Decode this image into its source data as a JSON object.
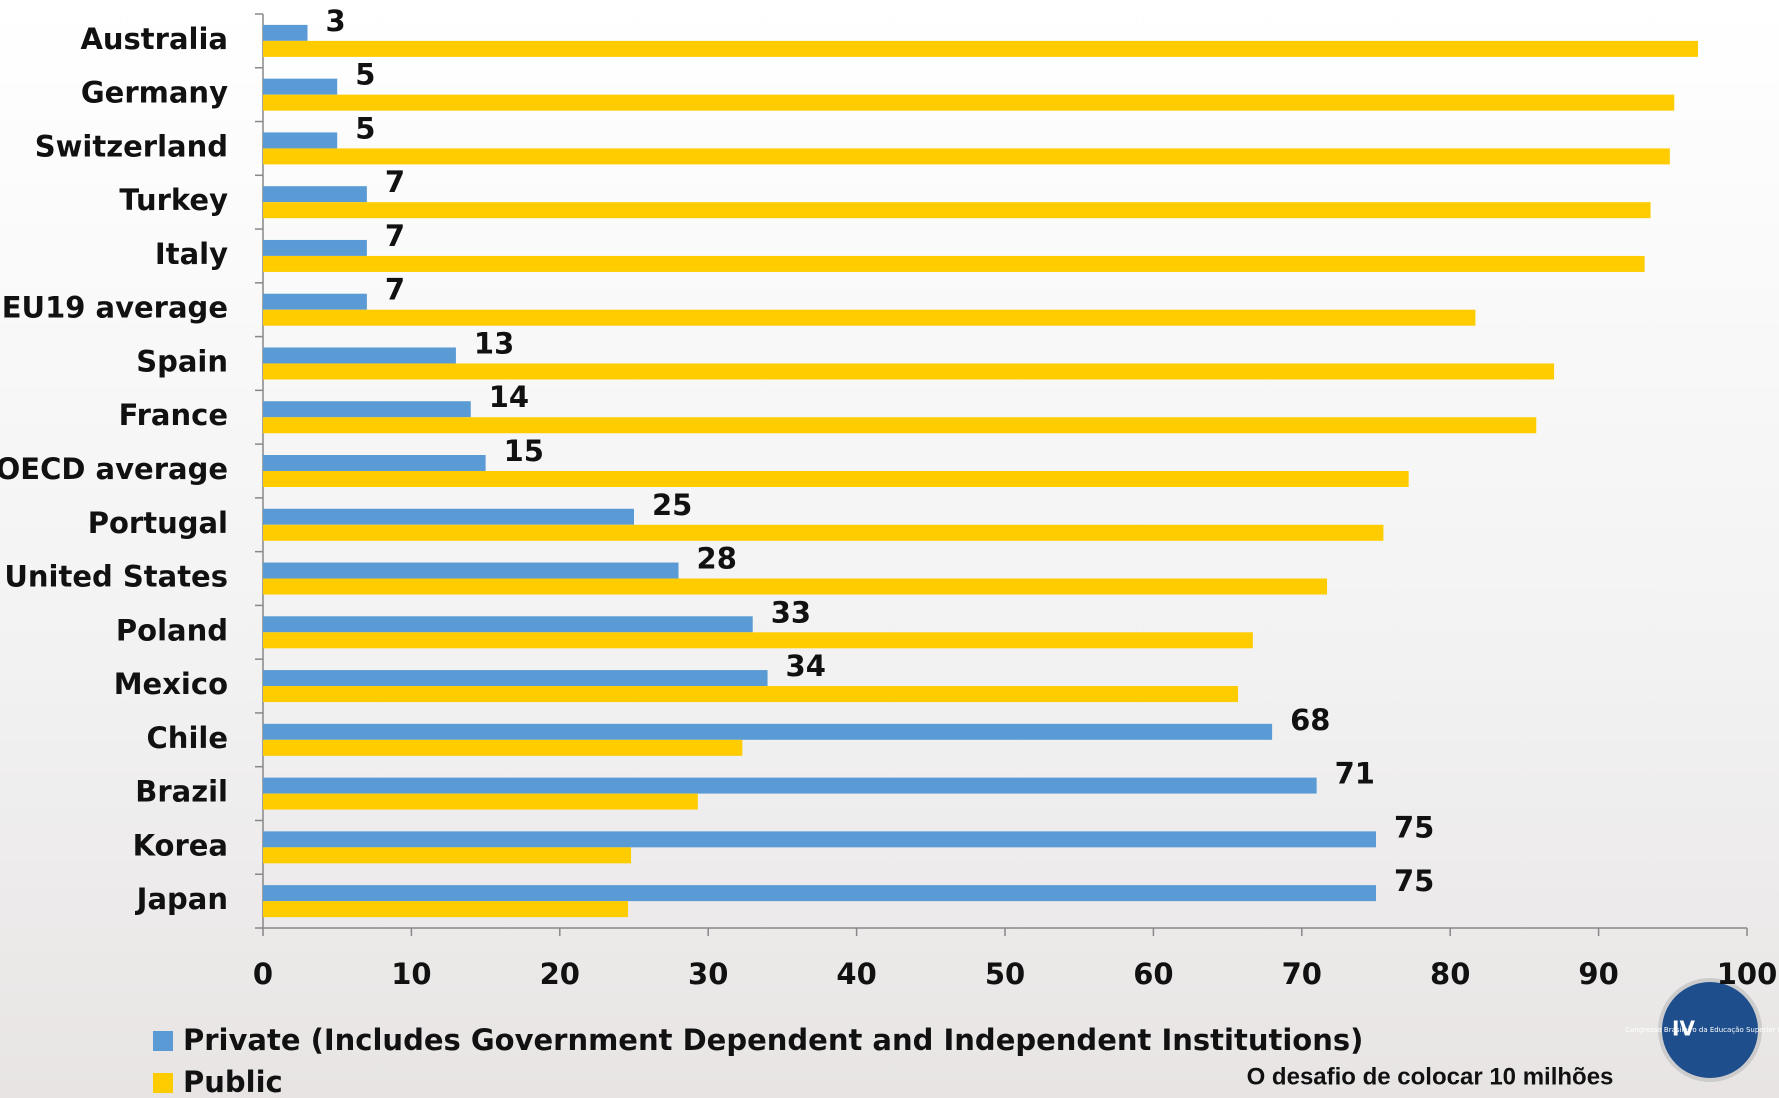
{
  "chart_data": {
    "type": "bar",
    "orientation": "horizontal",
    "categories": [
      "Australia",
      "Germany",
      "Switzerland",
      "Turkey",
      "Italy",
      "EU19 average",
      "Spain",
      "France",
      "OECD average",
      "Portugal",
      "United States",
      "Poland",
      "Mexico",
      "Chile",
      "Brazil",
      "Korea",
      "Japan"
    ],
    "series": [
      {
        "name": "Private (Includes Government Dependent and Independent Institutions)",
        "color": "#5b9bd5",
        "values": [
          3,
          5,
          5,
          7,
          7,
          7,
          13,
          14,
          15,
          25,
          28,
          33,
          34,
          68,
          71,
          75,
          75
        ],
        "show_value_labels": true
      },
      {
        "name": "Public",
        "color": "#ffcc00",
        "values": [
          96.7,
          95.1,
          94.8,
          93.5,
          93.1,
          81.7,
          87.0,
          85.8,
          77.2,
          75.5,
          71.7,
          66.7,
          65.7,
          32.3,
          29.3,
          24.8,
          24.6
        ],
        "show_value_labels": false
      }
    ],
    "xlim": [
      0,
      100
    ],
    "xticks": [
      0,
      10,
      20,
      30,
      40,
      50,
      60,
      70,
      80,
      90,
      100
    ],
    "legend": "bottom-left"
  },
  "logo": {
    "badge": "IV",
    "name": "Congresso Brasileiro da Educação Superior Particular",
    "slogan": "O desafio de colocar 10 milhões"
  }
}
